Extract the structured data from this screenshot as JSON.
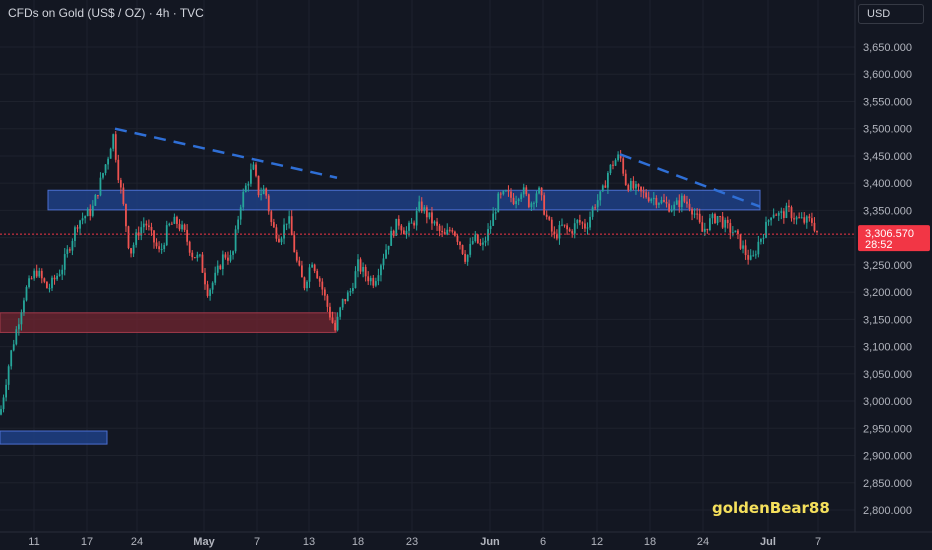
{
  "header": {
    "title": "CFDs on Gold (US$ / OZ) · 4h · TVC"
  },
  "currency": {
    "label": "USD"
  },
  "watermark": {
    "text": "goldenBear88"
  },
  "colors": {
    "background": "#131722",
    "up": "#26a69a",
    "down": "#ef5350",
    "zone_blue": "#1f3f85",
    "zone_red": "#6b2430",
    "trendline": "#2f6fd6",
    "price_tag": "#f23645"
  },
  "price_tag": {
    "price": "3,306.570",
    "countdown": "28:52",
    "value": 3306.57
  },
  "chart_data": {
    "type": "candlestick",
    "x_ticks": [
      "11",
      "17",
      "24",
      "May",
      "7",
      "13",
      "18",
      "23",
      "Jun",
      "6",
      "12",
      "18",
      "24",
      "Jul",
      "7"
    ],
    "y_ticks": [
      "2,800.000",
      "2,850.000",
      "2,900.000",
      "2,950.000",
      "3,000.000",
      "3,050.000",
      "3,100.000",
      "3,150.000",
      "3,200.000",
      "3,250.000",
      "3,300.000",
      "3,350.000",
      "3,400.000",
      "3,450.000",
      "3,500.000",
      "3,550.000",
      "3,600.000",
      "3,650.000"
    ],
    "ylim": [
      2778,
      3675
    ],
    "anchors": [
      [
        0,
        2975
      ],
      [
        10,
        3080
      ],
      [
        25,
        3200
      ],
      [
        36,
        3240
      ],
      [
        48,
        3205
      ],
      [
        62,
        3245
      ],
      [
        78,
        3330
      ],
      [
        92,
        3350
      ],
      [
        100,
        3400
      ],
      [
        108,
        3450
      ],
      [
        113,
        3490
      ],
      [
        118,
        3420
      ],
      [
        124,
        3350
      ],
      [
        130,
        3270
      ],
      [
        138,
        3310
      ],
      [
        145,
        3330
      ],
      [
        152,
        3300
      ],
      [
        160,
        3270
      ],
      [
        168,
        3320
      ],
      [
        176,
        3330
      ],
      [
        184,
        3310
      ],
      [
        192,
        3270
      ],
      [
        200,
        3260
      ],
      [
        208,
        3200
      ],
      [
        216,
        3230
      ],
      [
        224,
        3270
      ],
      [
        232,
        3260
      ],
      [
        240,
        3360
      ],
      [
        247,
        3400
      ],
      [
        253,
        3430
      ],
      [
        259,
        3380
      ],
      [
        265,
        3390
      ],
      [
        272,
        3320
      ],
      [
        280,
        3300
      ],
      [
        288,
        3340
      ],
      [
        296,
        3260
      ],
      [
        304,
        3210
      ],
      [
        312,
        3260
      ],
      [
        320,
        3220
      ],
      [
        328,
        3170
      ],
      [
        335,
        3130
      ],
      [
        342,
        3180
      ],
      [
        350,
        3200
      ],
      [
        358,
        3250
      ],
      [
        366,
        3230
      ],
      [
        374,
        3220
      ],
      [
        382,
        3260
      ],
      [
        390,
        3300
      ],
      [
        398,
        3330
      ],
      [
        406,
        3310
      ],
      [
        414,
        3330
      ],
      [
        420,
        3360
      ],
      [
        428,
        3340
      ],
      [
        436,
        3320
      ],
      [
        444,
        3300
      ],
      [
        452,
        3320
      ],
      [
        460,
        3290
      ],
      [
        466,
        3260
      ],
      [
        474,
        3300
      ],
      [
        482,
        3280
      ],
      [
        490,
        3320
      ],
      [
        498,
        3370
      ],
      [
        506,
        3380
      ],
      [
        514,
        3370
      ],
      [
        522,
        3390
      ],
      [
        530,
        3360
      ],
      [
        538,
        3390
      ],
      [
        546,
        3340
      ],
      [
        554,
        3300
      ],
      [
        562,
        3320
      ],
      [
        570,
        3310
      ],
      [
        578,
        3330
      ],
      [
        586,
        3320
      ],
      [
        594,
        3360
      ],
      [
        602,
        3380
      ],
      [
        608,
        3420
      ],
      [
        614,
        3440
      ],
      [
        620,
        3450
      ],
      [
        626,
        3400
      ],
      [
        634,
        3390
      ],
      [
        642,
        3380
      ],
      [
        650,
        3375
      ],
      [
        658,
        3370
      ],
      [
        666,
        3360
      ],
      [
        674,
        3355
      ],
      [
        682,
        3370
      ],
      [
        690,
        3360
      ],
      [
        696,
        3340
      ],
      [
        702,
        3310
      ],
      [
        710,
        3330
      ],
      [
        718,
        3340
      ],
      [
        726,
        3320
      ],
      [
        734,
        3310
      ],
      [
        740,
        3290
      ],
      [
        746,
        3270
      ],
      [
        752,
        3255
      ],
      [
        758,
        3290
      ],
      [
        766,
        3320
      ],
      [
        772,
        3350
      ],
      [
        780,
        3340
      ],
      [
        788,
        3350
      ],
      [
        796,
        3335
      ],
      [
        804,
        3330
      ],
      [
        812,
        3330
      ],
      [
        818,
        3307
      ]
    ],
    "zones": [
      {
        "kind": "blue",
        "x": [
          48,
          760
        ],
        "y": [
          3351,
          3387
        ]
      },
      {
        "kind": "red",
        "x": [
          0,
          336
        ],
        "y": [
          3126,
          3162
        ]
      },
      {
        "kind": "blue",
        "x": [
          0,
          107
        ],
        "y": [
          2921,
          2945
        ]
      }
    ],
    "trendlines": [
      {
        "x": [
          115,
          337
        ],
        "y": [
          3500,
          3410
        ]
      },
      {
        "x": [
          620,
          760
        ],
        "y": [
          3453,
          3357
        ]
      }
    ]
  }
}
